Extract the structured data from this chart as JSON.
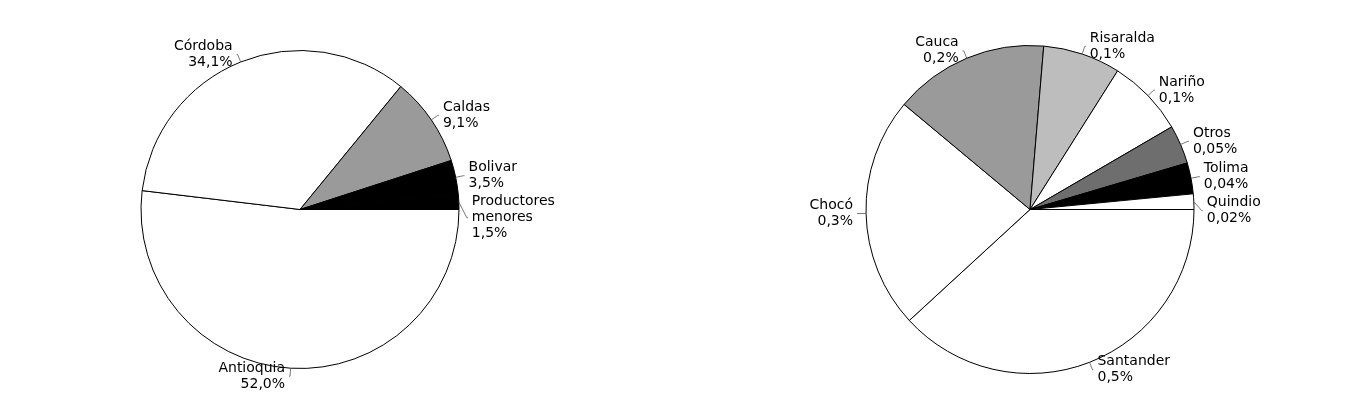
{
  "chart_data": [
    {
      "type": "pie",
      "categories": [
        "Antioquia",
        "Córdoba",
        "Caldas",
        "Bolivar",
        "Productores menores"
      ],
      "values": [
        52.0,
        34.1,
        9.1,
        3.5,
        1.5
      ],
      "value_labels": [
        "52,0%",
        "34,1%",
        "9,1%",
        "3,5%",
        "1,5%"
      ],
      "colors": [
        "#ffffff",
        "#ffffff",
        "#9a9a9a",
        "#000000",
        "#000000"
      ],
      "legend": false
    },
    {
      "type": "pie",
      "categories": [
        "Santander",
        "Chocó",
        "Cauca",
        "Risaralda",
        "Nariño",
        "Otros",
        "Tolima",
        "Quindio"
      ],
      "values": [
        0.5,
        0.3,
        0.2,
        0.1,
        0.1,
        0.05,
        0.04,
        0.02
      ],
      "value_labels": [
        "0,5%",
        "0,3%",
        "0,2%",
        "0,1%",
        "0,1%",
        "0,05%",
        "0,04%",
        "0,02%"
      ],
      "colors": [
        "#ffffff",
        "#ffffff",
        "#9a9a9a",
        "#bdbdbd",
        "#ffffff",
        "#6e6e6e",
        "#000000",
        "#ffffff"
      ],
      "legend": false
    }
  ]
}
